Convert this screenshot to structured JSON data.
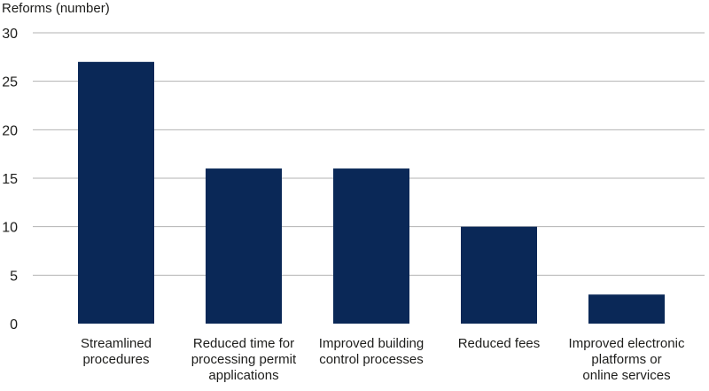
{
  "chart_data": {
    "type": "bar",
    "title": "",
    "xlabel": "",
    "ylabel": "Reforms (number)",
    "ylim": [
      0,
      30
    ],
    "yticks": [
      0,
      5,
      10,
      15,
      20,
      25,
      30
    ],
    "grid": true,
    "categories": [
      [
        "Streamlined",
        "procedures"
      ],
      [
        "Reduced time for",
        "processing permit",
        "applications"
      ],
      [
        "Improved building",
        "control processes"
      ],
      [
        "Reduced fees"
      ],
      [
        "Improved electronic",
        "platforms or",
        "online services"
      ]
    ],
    "values": [
      27,
      16,
      16,
      10,
      3
    ],
    "bar_color": "#0a2857",
    "grid_color": "#b3b3b3"
  }
}
